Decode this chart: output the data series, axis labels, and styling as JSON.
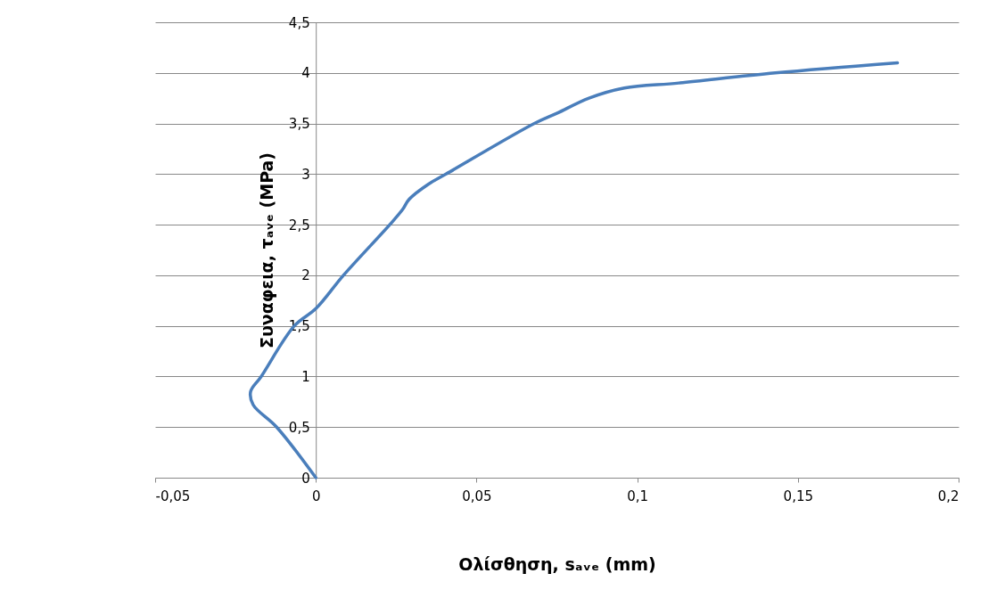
{
  "chart_data": {
    "type": "line",
    "xlabel": "Ολίσθηση, sₐᵥₑ (mm)",
    "ylabel": "Συναφεια, τₐᵥₑ (MPa)",
    "series": [
      {
        "color": "#4a7ebb",
        "x": [
          0,
          -0.0122,
          -0.0195,
          -0.0203,
          -0.017,
          -0.0067,
          0,
          0.0086,
          0.023,
          0.027,
          0.029,
          0.035,
          0.0405,
          0.068,
          0.075,
          0.085,
          0.096,
          0.113,
          0.143,
          0.181
        ],
        "values": [
          0,
          0.5,
          0.72,
          0.85,
          1,
          1.5,
          1.67,
          2,
          2.5,
          2.65,
          2.75,
          2.9,
          3,
          3.5,
          3.6,
          3.75,
          3.85,
          3.9,
          4,
          4.1
        ]
      }
    ],
    "xlim": [
      -0.05,
      0.2
    ],
    "xticks": [
      {
        "value": -0.05,
        "label": "-0,05"
      },
      0,
      {
        "value": 0.05,
        "label": "0,05"
      },
      {
        "value": 0.1,
        "label": "0,1"
      },
      {
        "value": 0.15,
        "label": "0,15"
      },
      {
        "value": 0.2,
        "label": "0,2"
      }
    ],
    "ylim": [
      0,
      4.5
    ],
    "yticks": [
      0,
      {
        "value": 0.5,
        "label": "0,5"
      },
      1,
      {
        "value": 1.5,
        "label": "1,5"
      },
      2,
      {
        "value": 2.5,
        "label": "2,5"
      },
      3,
      {
        "value": 3.5,
        "label": "3,5"
      },
      4,
      {
        "value": 4.5,
        "label": "4,5"
      }
    ],
    "grid": "y",
    "marker": "none",
    "line_style": "solid"
  }
}
